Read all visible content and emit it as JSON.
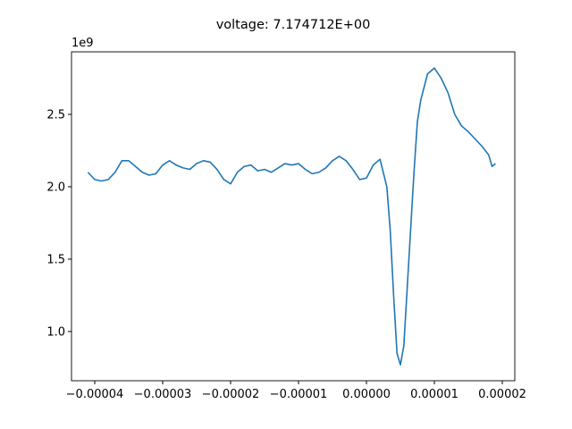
{
  "chart_data": {
    "type": "line",
    "title": "voltage: 7.174712E+00",
    "y_offset_label": "1e9",
    "x": [
      -4.1e-05,
      -4e-05,
      -3.9e-05,
      -3.8e-05,
      -3.7e-05,
      -3.6e-05,
      -3.5e-05,
      -3.4e-05,
      -3.3e-05,
      -3.2e-05,
      -3.1e-05,
      -3e-05,
      -2.9e-05,
      -2.8e-05,
      -2.7e-05,
      -2.6e-05,
      -2.5e-05,
      -2.4e-05,
      -2.3e-05,
      -2.2e-05,
      -2.1e-05,
      -2e-05,
      -1.9e-05,
      -1.8e-05,
      -1.7e-05,
      -1.6e-05,
      -1.5e-05,
      -1.4e-05,
      -1.3e-05,
      -1.2e-05,
      -1.1e-05,
      -1e-05,
      -9e-06,
      -8e-06,
      -7e-06,
      -6e-06,
      -5e-06,
      -4e-06,
      -3e-06,
      -2e-06,
      -1e-06,
      0,
      1e-06,
      2e-06,
      3e-06,
      3.5e-06,
      4e-06,
      4.5e-06,
      5e-06,
      5.5e-06,
      6e-06,
      7e-06,
      7.5e-06,
      8e-06,
      9e-06,
      1e-05,
      1.1e-05,
      1.2e-05,
      1.3e-05,
      1.4e-05,
      1.5e-05,
      1.6e-05,
      1.7e-05,
      1.8e-05,
      1.85e-05,
      1.9e-05
    ],
    "values": [
      2.1,
      2.05,
      2.04,
      2.05,
      2.1,
      2.18,
      2.18,
      2.14,
      2.1,
      2.08,
      2.09,
      2.15,
      2.18,
      2.15,
      2.13,
      2.12,
      2.16,
      2.18,
      2.17,
      2.12,
      2.05,
      2.02,
      2.1,
      2.14,
      2.15,
      2.11,
      2.12,
      2.1,
      2.13,
      2.16,
      2.15,
      2.16,
      2.12,
      2.09,
      2.1,
      2.13,
      2.18,
      2.21,
      2.18,
      2.12,
      2.05,
      2.06,
      2.15,
      2.19,
      2.0,
      1.7,
      1.25,
      0.85,
      0.77,
      0.9,
      1.3,
      2.1,
      2.45,
      2.6,
      2.78,
      2.82,
      2.75,
      2.65,
      2.5,
      2.42,
      2.38,
      2.33,
      2.28,
      2.22,
      2.14,
      2.16
    ],
    "color": "#1f77b4",
    "xlim": [
      -4.342e-05,
      2.184e-05
    ],
    "xticks": [
      {
        "value": -4e-05,
        "label": "−0.00004"
      },
      {
        "value": -3e-05,
        "label": "−0.00003"
      },
      {
        "value": -2e-05,
        "label": "−0.00002"
      },
      {
        "value": -1e-05,
        "label": "−0.00001"
      },
      {
        "value": 0,
        "label": "0.00000"
      },
      {
        "value": 1e-05,
        "label": "0.00001"
      },
      {
        "value": 2e-05,
        "label": "0.00002"
      }
    ],
    "ylim": [
      0.66,
      2.932
    ],
    "yticks": [
      {
        "value": 1.0,
        "label": "1.0"
      },
      1.5,
      {
        "value": 2.0,
        "label": "2.0"
      },
      2.5
    ]
  }
}
